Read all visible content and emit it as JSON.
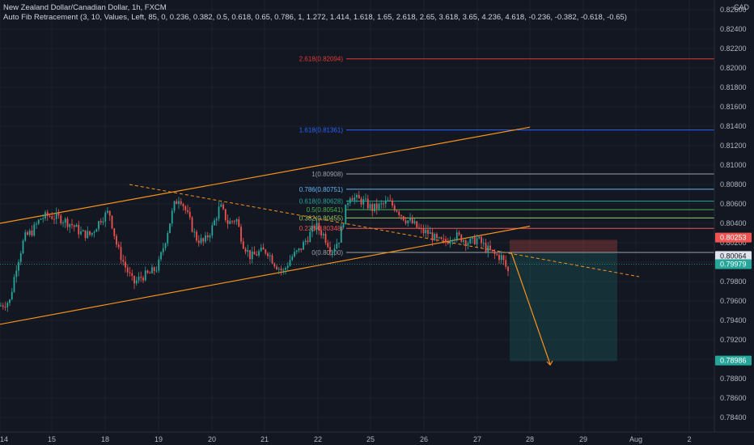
{
  "header": {
    "symbol_line": "New Zealand Dollar/Canadian Dollar, 1h, FXCM",
    "indicator_line": "Auto Fib Retracement (3, 10, Values, Left, 85, 0, 0.236, 0.382, 0.5, 0.618, 0.65, 0.786, 1, 1.272, 1.414, 1.618, 1.65, 2.618, 2.65, 3.618, 3.65, 4.236, 4.618, -0.236, -0.382, -0.618, -0.65)"
  },
  "currency": "CAD",
  "colors": {
    "background": "#131722",
    "up": "#26a69a",
    "down": "#ef5350",
    "channel": "#f7931a",
    "fib_2618": "#e53935",
    "fib_1618": "#2962ff"
  },
  "chart_data": {
    "type": "candlestick",
    "title": "New Zealand Dollar/Canadian Dollar, 1h, FXCM",
    "ylim": [
      0.7825,
      0.827
    ],
    "y_ticks": [
      "0.82600",
      "0.82400",
      "0.82200",
      "0.82000",
      "0.81800",
      "0.81600",
      "0.81400",
      "0.81200",
      "0.81000",
      "0.80800",
      "0.80600",
      "0.80400",
      "0.80200",
      "0.80000",
      "0.79800",
      "0.79600",
      "0.79400",
      "0.79200",
      "0.79000",
      "0.78800",
      "0.78600",
      "0.78400"
    ],
    "x_ticks": [
      {
        "label": "14",
        "x": 0
      },
      {
        "label": "15",
        "x": 64
      },
      {
        "label": "18",
        "x": 130
      },
      {
        "label": "19",
        "x": 196
      },
      {
        "label": "20",
        "x": 262
      },
      {
        "label": "21",
        "x": 327
      },
      {
        "label": "22",
        "x": 393
      },
      {
        "label": "25",
        "x": 458
      },
      {
        "label": "26",
        "x": 524
      },
      {
        "label": "27",
        "x": 590
      },
      {
        "label": "28",
        "x": 655
      },
      {
        "label": "29",
        "x": 721
      },
      {
        "label": "Aug",
        "x": 786
      },
      {
        "label": "2",
        "x": 852
      }
    ],
    "xlim": [
      0,
      883
    ],
    "price_path": [
      [
        0,
        0.7955
      ],
      [
        12,
        0.796
      ],
      [
        20,
        0.7995
      ],
      [
        30,
        0.8025
      ],
      [
        40,
        0.8032
      ],
      [
        50,
        0.8045
      ],
      [
        60,
        0.8048
      ],
      [
        75,
        0.8045
      ],
      [
        90,
        0.8038
      ],
      [
        100,
        0.803
      ],
      [
        112,
        0.8028
      ],
      [
        125,
        0.8045
      ],
      [
        135,
        0.8052
      ],
      [
        145,
        0.8015
      ],
      [
        155,
        0.7995
      ],
      [
        165,
        0.7978
      ],
      [
        175,
        0.7985
      ],
      [
        185,
        0.7988
      ],
      [
        195,
        0.7995
      ],
      [
        205,
        0.8025
      ],
      [
        215,
        0.8058
      ],
      [
        222,
        0.8068
      ],
      [
        232,
        0.8048
      ],
      [
        242,
        0.8025
      ],
      [
        252,
        0.802
      ],
      [
        262,
        0.8035
      ],
      [
        272,
        0.8058
      ],
      [
        282,
        0.804
      ],
      [
        292,
        0.8045
      ],
      [
        300,
        0.802
      ],
      [
        310,
        0.8005
      ],
      [
        320,
        0.801
      ],
      [
        330,
        0.8012
      ],
      [
        340,
        0.7998
      ],
      [
        350,
        0.799
      ],
      [
        360,
        0.8005
      ],
      [
        370,
        0.8012
      ],
      [
        380,
        0.8025
      ],
      [
        390,
        0.8038
      ],
      [
        400,
        0.8028
      ],
      [
        410,
        0.8012
      ],
      [
        420,
        0.8025
      ],
      [
        426,
        0.805
      ],
      [
        432,
        0.807
      ],
      [
        440,
        0.8065
      ],
      [
        450,
        0.8062
      ],
      [
        460,
        0.8055
      ],
      [
        470,
        0.8058
      ],
      [
        480,
        0.8062
      ],
      [
        490,
        0.8055
      ],
      [
        500,
        0.8045
      ],
      [
        510,
        0.804
      ],
      [
        520,
        0.8032
      ],
      [
        530,
        0.803
      ],
      [
        540,
        0.8022
      ],
      [
        550,
        0.802
      ],
      [
        560,
        0.8028
      ],
      [
        570,
        0.8025
      ],
      [
        580,
        0.802
      ],
      [
        590,
        0.8024
      ],
      [
        600,
        0.8015
      ],
      [
        610,
        0.8008
      ],
      [
        620,
        0.8005
      ],
      [
        628,
        0.799
      ]
    ],
    "fib_levels": [
      {
        "ratio": "2.618",
        "price": 0.82094,
        "label": "2.618(0.82094)",
        "color": "#e53935"
      },
      {
        "ratio": "1.618",
        "price": 0.81361,
        "label": "1.618(0.81361)",
        "color": "#2962ff"
      },
      {
        "ratio": "1",
        "price": 0.80908,
        "label": "1(0.80908)",
        "color": "#9aa0a6"
      },
      {
        "ratio": "0.786",
        "price": 0.80751,
        "label": "0.786(0.80751)",
        "color": "#64b5f6"
      },
      {
        "ratio": "0.618",
        "price": 0.80628,
        "label": "0.618(0.80628)",
        "color": "#26a69a"
      },
      {
        "ratio": "0.5",
        "price": 0.80541,
        "label": "0.5(0.80541)",
        "color": "#4caf50"
      },
      {
        "ratio": "0.382",
        "price": 0.80455,
        "label": "0.382(0.80455)",
        "color": "#9ccc65"
      },
      {
        "ratio": "0.236",
        "price": 0.80348,
        "label": "0.236(0.80348)",
        "color": "#ef5350"
      },
      {
        "ratio": "0",
        "price": 0.801,
        "label": "0(0.80100)",
        "color": "#9aa0a6"
      }
    ],
    "channel": {
      "upper": [
        [
          0,
          0.804
        ],
        [
          655,
          0.8139
        ]
      ],
      "lower": [
        [
          0,
          0.7936
        ],
        [
          655,
          0.8037
        ]
      ]
    },
    "dashed_trendline": [
      [
        160,
        0.808
      ],
      [
        790,
        0.7985
      ]
    ],
    "position": {
      "entry": 0.801,
      "stop": 0.8023,
      "target": 0.7898,
      "x_start": 630,
      "x_end": 763,
      "arrow": [
        [
          632,
          0.801
        ],
        [
          680,
          0.7895
        ]
      ]
    },
    "price_badges": [
      {
        "value": "0.80253",
        "color": "#ef5350",
        "text_color": "#ffffff"
      },
      {
        "value": "0.80064",
        "color": "#e0e3eb",
        "text_color": "#131722"
      },
      {
        "value": "0.79979",
        "color": "#26a69a",
        "text_color": "#ffffff"
      },
      {
        "value": "0.78986",
        "color": "#26a69a",
        "text_color": "#ffffff"
      }
    ]
  }
}
